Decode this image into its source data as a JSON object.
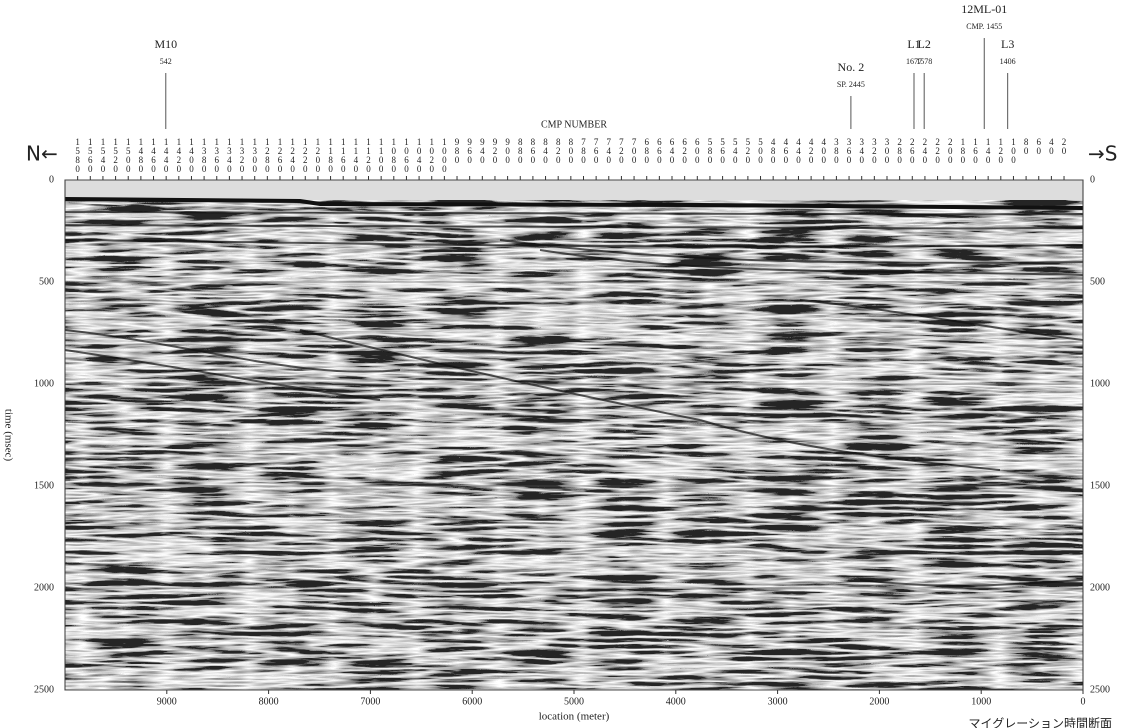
{
  "chart_data": {
    "type": "seismic-section",
    "direction_left": "N←",
    "direction_right": "→S",
    "x2label": "CMP NUMBER",
    "xlabel": "location (meter)",
    "ylabel": "time (msec)",
    "xlim": [
      10000,
      0
    ],
    "xticks": [
      9000,
      8000,
      7000,
      6000,
      5000,
      4000,
      3000,
      2000,
      1000,
      0
    ],
    "ylim": [
      2500,
      0
    ],
    "yticks": [
      0,
      500,
      1000,
      1500,
      2000,
      2500
    ],
    "x2lim": [
      1600,
      -10
    ],
    "x2ticks": [
      1580,
      1560,
      1540,
      1520,
      1500,
      1480,
      1460,
      1440,
      1420,
      1400,
      1380,
      1360,
      1340,
      1320,
      1300,
      1280,
      1260,
      1240,
      1220,
      1200,
      1180,
      1160,
      1140,
      1120,
      1100,
      1080,
      1060,
      1040,
      1020,
      1000,
      980,
      960,
      940,
      920,
      900,
      880,
      860,
      840,
      820,
      800,
      780,
      760,
      740,
      720,
      700,
      680,
      660,
      640,
      620,
      600,
      580,
      560,
      540,
      520,
      500,
      480,
      460,
      440,
      420,
      400,
      380,
      360,
      340,
      320,
      300,
      280,
      260,
      240,
      220,
      200,
      180,
      160,
      140,
      120,
      100,
      80,
      60,
      40,
      20
    ],
    "grid": true,
    "annotations": [
      {
        "label": "M10",
        "sublabel": "542",
        "x": 9010
      },
      {
        "label": "No. 2",
        "sublabel": "SP. 2445",
        "x": 2280
      },
      {
        "label": "L1",
        "sublabel": "1677",
        "x": 1660
      },
      {
        "label": "L2",
        "sublabel": "1578",
        "x": 1560
      },
      {
        "label": "12ML-01",
        "sublabel": "CMP. 1455",
        "x": 970
      },
      {
        "label": "L3",
        "sublabel": "1406",
        "x": 740
      }
    ],
    "footnote": "マイグレーション時間断面"
  }
}
